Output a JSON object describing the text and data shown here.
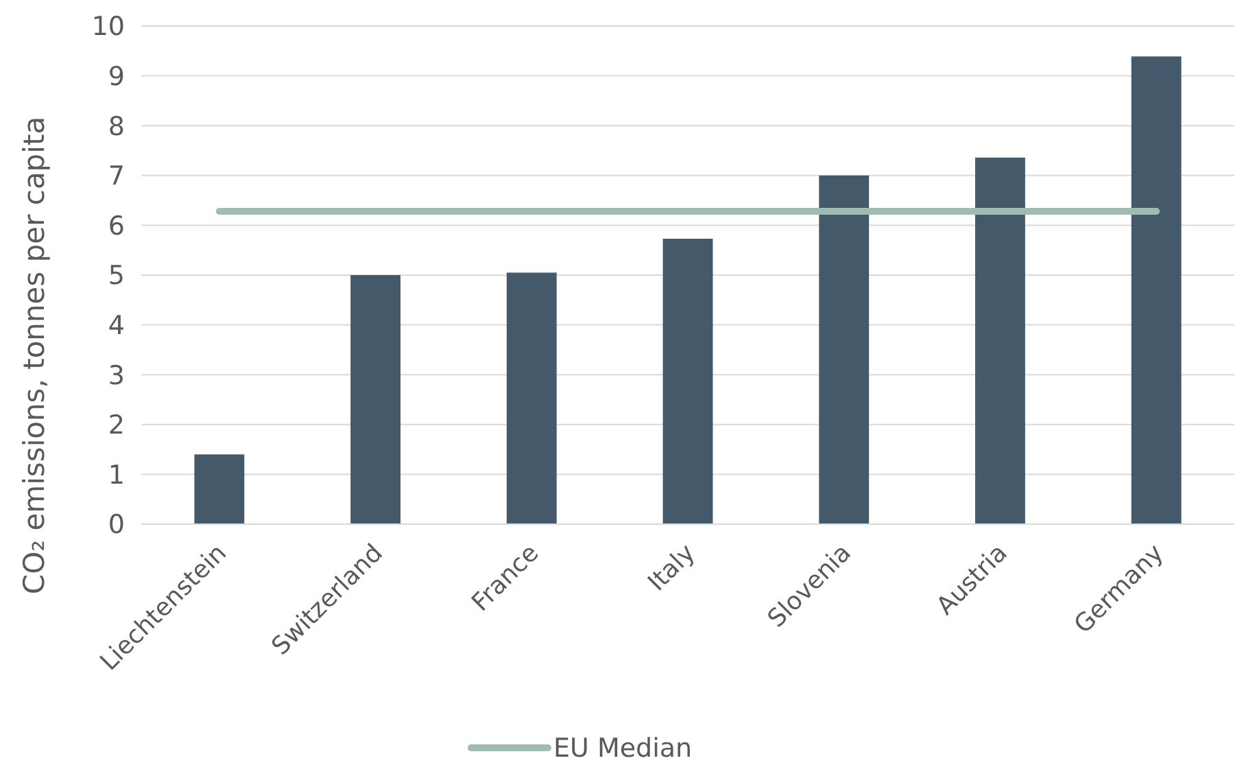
{
  "chart_data": {
    "type": "bar",
    "ylabel": "CO₂ emissions, tonnes per capita",
    "categories": [
      "Liechtenstein",
      "Switzerland",
      "France",
      "Italy",
      "Slovenia",
      "Austria",
      "Germany"
    ],
    "series": [
      {
        "color": "#44596a",
        "values": [
          1.4,
          5.0,
          5.05,
          5.73,
          7.0,
          7.36,
          9.39
        ]
      },
      {
        "type": "line",
        "name": "EU Median",
        "color": "#a0bcb0",
        "values": [
          6.28,
          6.28,
          6.28,
          6.28,
          6.28,
          6.28,
          6.28
        ]
      }
    ],
    "ylim": [
      0,
      10
    ],
    "yticks": [
      0,
      1,
      2,
      3,
      4,
      5,
      6,
      7,
      8,
      9,
      10
    ],
    "grid": "y",
    "legend": "bottom",
    "marker": "none",
    "line_style": "solid"
  }
}
